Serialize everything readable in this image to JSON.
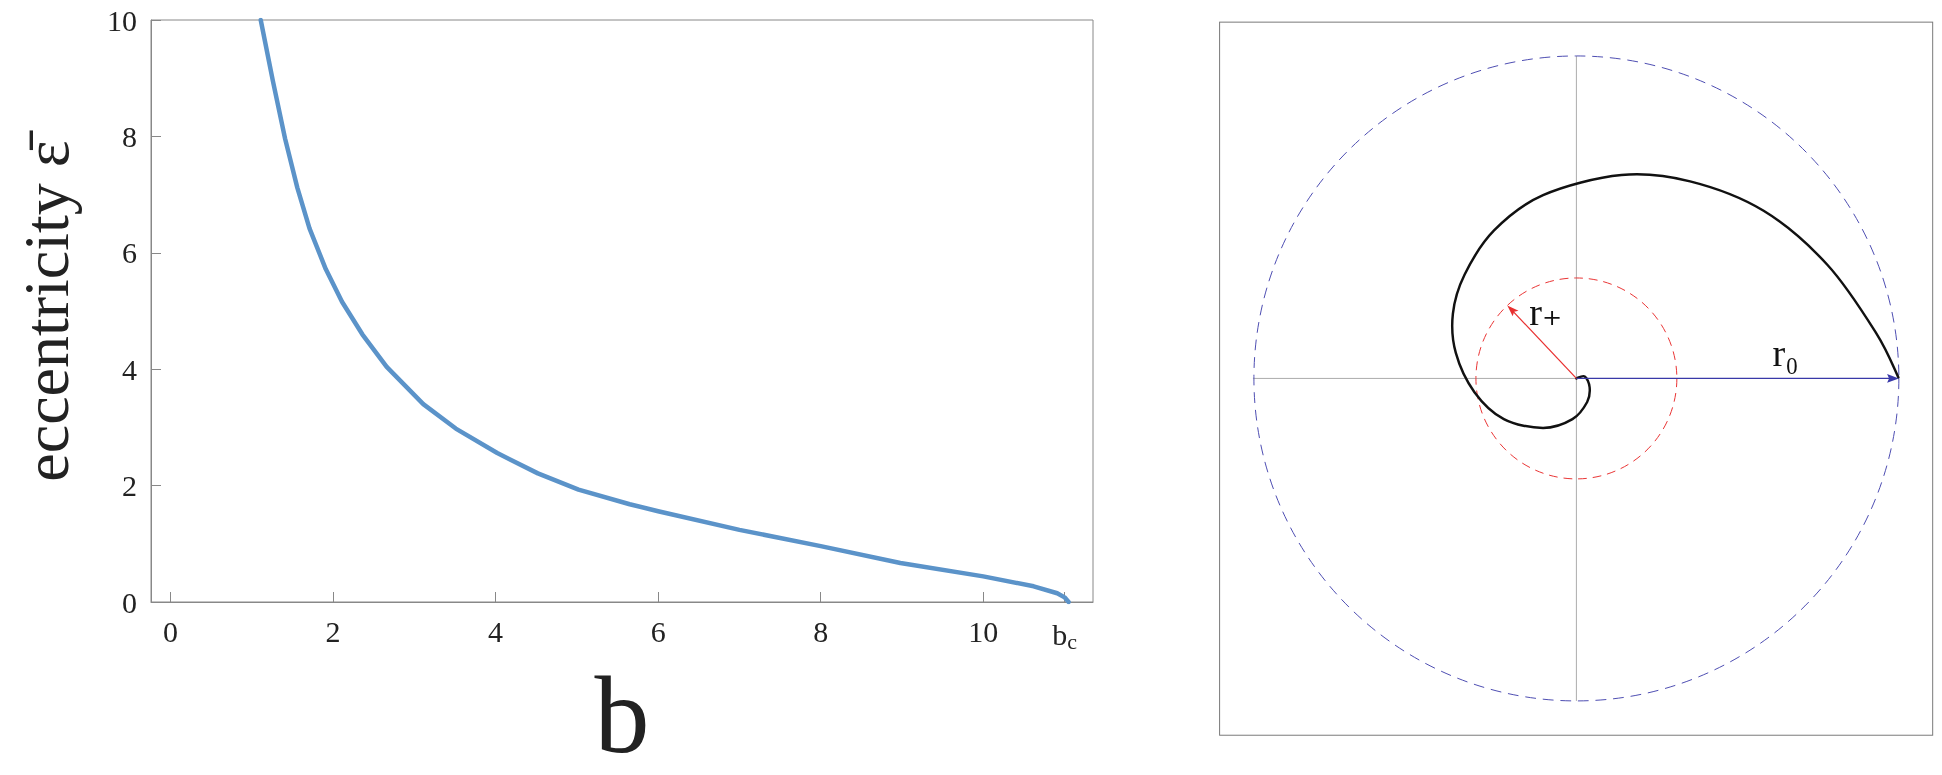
{
  "chart_data": [
    {
      "type": "line",
      "xlabel": "b",
      "ylabel": "eccentricity ε̄",
      "marker": "none",
      "x": [
        1.11,
        1.26,
        1.41,
        1.56,
        1.71,
        1.91,
        2.11,
        2.36,
        2.66,
        3.11,
        3.51,
        4.02,
        4.52,
        5.02,
        5.65,
        6.0,
        7.0,
        8.0,
        8.98,
        10.0,
        10.62,
        10.91,
        11.0,
        11.05
      ],
      "series": [
        {
          "color": "#5b93c9",
          "values": [
            10,
            8.95,
            7.96,
            7.12,
            6.42,
            5.72,
            5.16,
            4.6,
            4.04,
            3.4,
            2.98,
            2.56,
            2.21,
            1.93,
            1.68,
            1.56,
            1.24,
            0.96,
            0.67,
            0.44,
            0.27,
            0.15,
            0.08,
            0
          ]
        }
      ],
      "xlim": [
        -0.24,
        11.35
      ],
      "xticks": [
        0,
        2,
        4,
        6,
        8,
        10,
        {
          "value": 11.0,
          "label": "b$_{c}$"
        }
      ],
      "ylim": [
        0,
        10
      ],
      "yticks": [
        0,
        2,
        4,
        6,
        8,
        10
      ]
    },
    {
      "type": "other",
      "annotations": [
        "r₊",
        "r₀"
      ]
    }
  ]
}
